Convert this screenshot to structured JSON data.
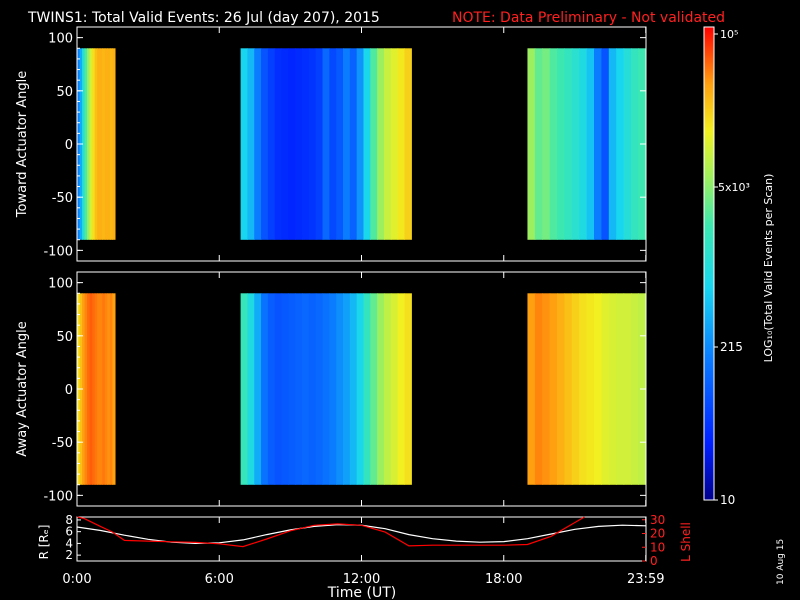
{
  "header": {
    "title": "TWINS1: Total Valid Events: 26 Jul (day 207), 2015",
    "note": "NOTE: Data Preliminary - Not validated"
  },
  "panels": {
    "toward_ylabel": "Toward Actuator Angle",
    "away_ylabel": "Away Actuator Angle",
    "angle_ticks": [
      "100",
      "50",
      "0",
      "-50",
      "-100"
    ]
  },
  "colorbar": {
    "label": "LOG₁₀(Total Valid Events per Scan)",
    "tick_top": "10⁵",
    "tick_5e3": "5x10³",
    "tick_215": "215",
    "tick_10": "10"
  },
  "orbit_panel": {
    "left_label": "R [Rₑ]",
    "left_ticks": [
      "8",
      "6",
      "4",
      "2"
    ],
    "right_label": "L Shell",
    "right_ticks": [
      "30",
      "20",
      "10",
      "0"
    ]
  },
  "time_axis": {
    "ticks": [
      "0:00",
      "6:00",
      "12:00",
      "18:00",
      "23:59"
    ],
    "label": "Time (UT)"
  },
  "date_stamp": "10 Aug 15",
  "colors": {
    "note": "#ff2020",
    "lshell": "#ff0000",
    "radius": "#ffffff",
    "background": "#000000"
  },
  "chart_data": [
    {
      "type": "heatmap",
      "title": "Toward Actuator Angle",
      "x_unit": "hours UT",
      "ylabel": "Toward Actuator Angle",
      "xlim": [
        0,
        24
      ],
      "ylim": [
        -110,
        110
      ],
      "data_ylim": [
        -90,
        90
      ],
      "colorscale": "log10",
      "zlim": [
        10,
        100000
      ],
      "segments": [
        {
          "start": 0.0,
          "end": 1.6,
          "profile": [
            0.3,
            0.38,
            0.5,
            0.6,
            0.68,
            0.75,
            0.8,
            0.84,
            0.86,
            0.86,
            0.85,
            0.86,
            0.86,
            0.85,
            0.86
          ]
        },
        {
          "start": 6.9,
          "end": 14.1,
          "profile": [
            0.45,
            0.4,
            0.3,
            0.22,
            0.18,
            0.15,
            0.14,
            0.13,
            0.14,
            0.15,
            0.16,
            0.18,
            0.26,
            0.2,
            0.23,
            0.3,
            0.25,
            0.34,
            0.46,
            0.6,
            0.68,
            0.73,
            0.76,
            0.79,
            0.82
          ]
        },
        {
          "start": 19.0,
          "end": 23.99,
          "profile": [
            0.68,
            0.62,
            0.64,
            0.6,
            0.58,
            0.55,
            0.52,
            0.48,
            0.42,
            0.3,
            0.22,
            0.4,
            0.45,
            0.5,
            0.55,
            0.58
          ]
        }
      ]
    },
    {
      "type": "heatmap",
      "title": "Away Actuator Angle",
      "x_unit": "hours UT",
      "ylabel": "Away Actuator Angle",
      "xlim": [
        0,
        24
      ],
      "ylim": [
        -110,
        110
      ],
      "data_ylim": [
        -90,
        90
      ],
      "colorscale": "log10",
      "zlim": [
        10,
        100000
      ],
      "segments": [
        {
          "start": 0.0,
          "end": 1.6,
          "profile": [
            0.8,
            0.84,
            0.88,
            0.9,
            0.92,
            0.93,
            0.92,
            0.91,
            0.9,
            0.9,
            0.91,
            0.9,
            0.89,
            0.9,
            0.88
          ]
        },
        {
          "start": 6.9,
          "end": 14.1,
          "profile": [
            0.56,
            0.48,
            0.38,
            0.28,
            0.24,
            0.22,
            0.23,
            0.24,
            0.25,
            0.26,
            0.25,
            0.26,
            0.28,
            0.3,
            0.33,
            0.36,
            0.4,
            0.46,
            0.55,
            0.62,
            0.68,
            0.72,
            0.75,
            0.78,
            0.8
          ]
        },
        {
          "start": 19.0,
          "end": 23.99,
          "profile": [
            0.88,
            0.9,
            0.89,
            0.88,
            0.86,
            0.84,
            0.82,
            0.8,
            0.79,
            0.78,
            0.76,
            0.75,
            0.74,
            0.74,
            0.73,
            0.72
          ]
        }
      ]
    },
    {
      "type": "line",
      "x_unit": "hours UT",
      "xlabel": "Time (UT)",
      "xlim": [
        0,
        24
      ],
      "series": [
        {
          "color": "#ffffff",
          "axis": "left",
          "ylim": [
            1,
            8.5
          ],
          "x": [
            0,
            1,
            2,
            3,
            4,
            5,
            6,
            7,
            8,
            9,
            10,
            11,
            12,
            13,
            14,
            15,
            16,
            17,
            18,
            19,
            20,
            21,
            22,
            23,
            24
          ],
          "y": [
            6.8,
            6.2,
            5.4,
            4.7,
            4.2,
            4.0,
            4.1,
            4.6,
            5.5,
            6.3,
            6.9,
            7.2,
            7.1,
            6.5,
            5.5,
            4.8,
            4.4,
            4.2,
            4.3,
            4.8,
            5.6,
            6.4,
            6.9,
            7.1,
            7.0
          ]
        },
        {
          "color": "#ff0000",
          "axis": "right",
          "ylim": [
            0,
            32
          ],
          "x": [
            0,
            0.3,
            1,
            1.5,
            2,
            3,
            4,
            5,
            6,
            7,
            8,
            9,
            10,
            11,
            12,
            13,
            14,
            15,
            16,
            17,
            18,
            19,
            20,
            21,
            21.4
          ],
          "y": [
            32,
            31,
            25,
            21,
            15,
            14.5,
            14,
            13.5,
            12.5,
            10.5,
            16,
            22,
            26,
            27,
            26,
            21,
            11,
            11.5,
            11.5,
            11.5,
            11.5,
            12,
            18,
            28,
            32
          ]
        }
      ]
    }
  ]
}
